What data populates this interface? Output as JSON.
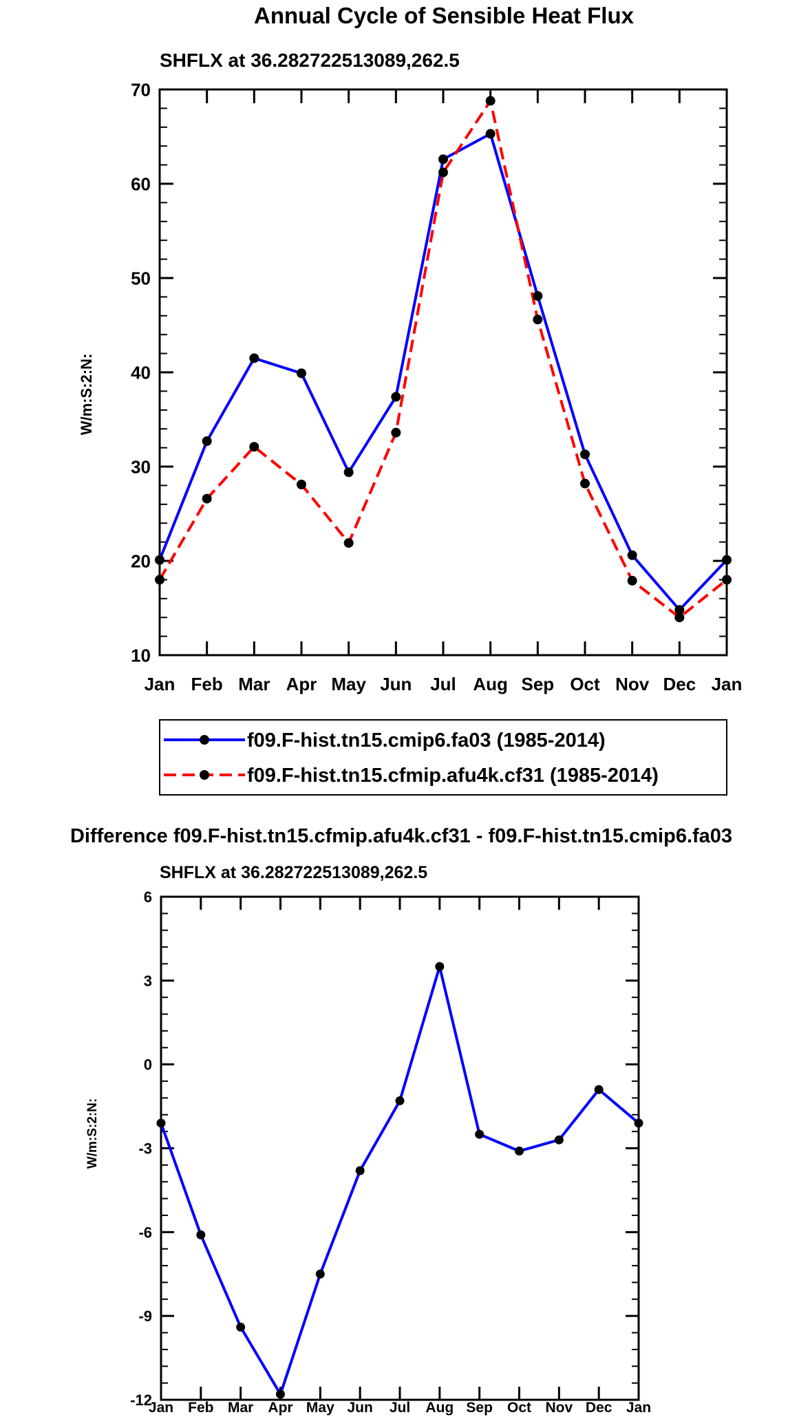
{
  "main_title": "Annual Cycle of Sensible Heat Flux",
  "chart_data": [
    {
      "type": "line",
      "subtitle": "SHFLX at 36.282722513089,262.5",
      "ylabel": "W/m:S:2:N:",
      "xlabel": "",
      "categories": [
        "Jan",
        "Feb",
        "Mar",
        "Apr",
        "May",
        "Jun",
        "Jul",
        "Aug",
        "Sep",
        "Oct",
        "Nov",
        "Dec",
        "Jan"
      ],
      "ylim": [
        10,
        70
      ],
      "yticks": [
        10,
        20,
        30,
        40,
        50,
        60,
        70
      ],
      "yticks_minor_step": 2,
      "series": [
        {
          "name": "f09.F-hist.tn15.cmip6.fa03 (1985-2014)",
          "color": "#0000ff",
          "dash": "solid",
          "values": [
            20.1,
            32.7,
            41.5,
            39.9,
            29.4,
            37.4,
            62.6,
            65.3,
            48.1,
            31.3,
            20.6,
            14.8,
            20.1
          ]
        },
        {
          "name": "f09.F-hist.tn15.cfmip.afu4k.cf31 (1985-2014)",
          "color": "#ff0000",
          "dash": "dashed",
          "values": [
            18.0,
            26.6,
            32.1,
            28.1,
            21.9,
            33.6,
            61.2,
            68.8,
            45.6,
            28.2,
            17.9,
            14.0,
            18.0
          ]
        }
      ],
      "legend_position": "below"
    },
    {
      "type": "line",
      "title": "Difference f09.F-hist.tn15.cfmip.afu4k.cf31 - f09.F-hist.tn15.cmip6.fa03",
      "subtitle": "SHFLX at 36.282722513089,262.5",
      "ylabel": "W/m:S:2:N:",
      "xlabel": "",
      "categories": [
        "Jan",
        "Feb",
        "Mar",
        "Apr",
        "May",
        "Jun",
        "Jul",
        "Aug",
        "Sep",
        "Oct",
        "Nov",
        "Dec",
        "Jan"
      ],
      "ylim": [
        -12,
        6
      ],
      "yticks": [
        -12,
        -9,
        -6,
        -3,
        0,
        3,
        6
      ],
      "yticks_minor_step": 0.6,
      "series": [
        {
          "name": "difference",
          "color": "#0000ff",
          "dash": "solid",
          "values": [
            -2.1,
            -6.1,
            -9.4,
            -11.8,
            -7.5,
            -3.8,
            -1.3,
            3.5,
            -2.5,
            -3.1,
            -2.7,
            -0.9,
            -2.1
          ]
        }
      ]
    }
  ]
}
